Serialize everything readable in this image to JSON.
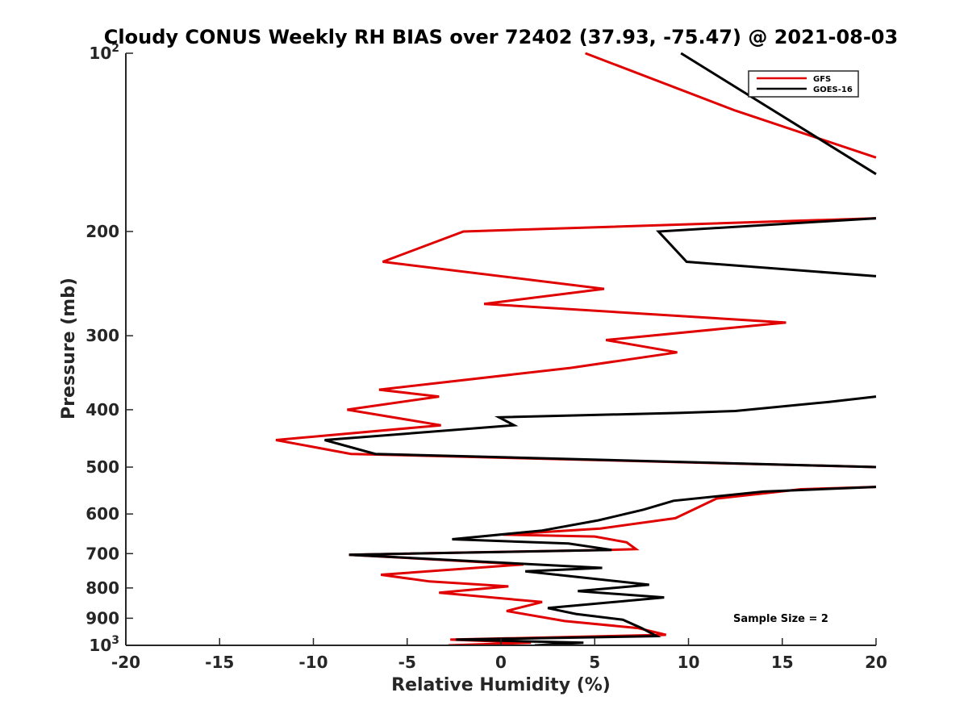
{
  "chart_data": {
    "type": "line",
    "title": "Cloudy CONUS Weekly RH BIAS over 72402 (37.93, -75.47) @ 2021-08-03",
    "xlabel": "Relative Humidity (%)",
    "ylabel": "Pressure (mb)",
    "xlim": [
      -20,
      20
    ],
    "ylim": [
      1000,
      100
    ],
    "yscale": "log",
    "grid": false,
    "legend_position": "top-right",
    "x_ticks": [
      "-20",
      "-15",
      "-10",
      "-5",
      "0",
      "5",
      "10",
      "15",
      "20"
    ],
    "y_ticks": [
      {
        "value": 100,
        "base": "10",
        "exp": "2"
      },
      {
        "value": 200,
        "label": "200"
      },
      {
        "value": 300,
        "label": "300"
      },
      {
        "value": 400,
        "label": "400"
      },
      {
        "value": 500,
        "label": "500"
      },
      {
        "value": 600,
        "label": "600"
      },
      {
        "value": 700,
        "label": "700"
      },
      {
        "value": 800,
        "label": "800"
      },
      {
        "value": 900,
        "label": "900"
      },
      {
        "value": 1000,
        "base": "10",
        "exp": "3"
      }
    ],
    "annotation": "Sample Size = 2",
    "series": [
      {
        "name": "GFS",
        "color": "#e00000",
        "segments": [
          [
            [
              4.5,
              100
            ],
            [
              12.5,
              125
            ],
            [
              20,
              150
            ]
          ],
          [
            [
              20,
              190
            ],
            [
              -2,
              200
            ],
            [
              -6.3,
              225
            ],
            [
              5.5,
              250
            ],
            [
              -0.9,
              265
            ],
            [
              15.2,
              285
            ],
            [
              5.6,
              305
            ],
            [
              9.4,
              320
            ],
            [
              3.7,
              340
            ],
            [
              -6.5,
              370
            ],
            [
              -3.3,
              380
            ],
            [
              -8.2,
              400
            ],
            [
              -3.2,
              425
            ],
            [
              -12,
              450
            ],
            [
              -8,
              475
            ],
            [
              20,
              500
            ]
          ],
          [
            [
              20,
              540
            ],
            [
              16,
              545
            ],
            [
              11.5,
              565
            ],
            [
              10.5,
              585
            ],
            [
              9.3,
              610
            ],
            [
              5.3,
              635
            ],
            [
              0.1,
              650
            ],
            [
              5,
              655
            ],
            [
              6.7,
              670
            ],
            [
              7.2,
              688
            ],
            [
              5.7,
              690
            ],
            [
              -8.1,
              703
            ],
            [
              1.2,
              730
            ],
            [
              -6.4,
              760
            ],
            [
              -3.8,
              780
            ],
            [
              0.4,
              795
            ],
            [
              -3.3,
              815
            ],
            [
              2.2,
              845
            ],
            [
              0.3,
              875
            ],
            [
              3.4,
              910
            ],
            [
              7.3,
              935
            ],
            [
              8.8,
              960
            ],
            [
              -2.7,
              978
            ],
            [
              1.6,
              990
            ],
            [
              -2.8,
              1000
            ]
          ]
        ]
      },
      {
        "name": "GOES-16",
        "color": "#000000",
        "segments": [
          [
            [
              9.6,
              100
            ],
            [
              20,
              160
            ]
          ],
          [
            [
              20,
              190
            ],
            [
              8.4,
              200
            ],
            [
              9.9,
              225
            ],
            [
              20,
              238
            ]
          ],
          [
            [
              20,
              380
            ],
            [
              17.5,
              388
            ],
            [
              12.5,
              402
            ],
            [
              9.5,
              405
            ],
            [
              -0.1,
              412
            ],
            [
              0.7,
              425
            ],
            [
              -9.4,
              450
            ],
            [
              -6.7,
              475
            ],
            [
              20,
              500
            ]
          ],
          [
            [
              20,
              540
            ],
            [
              14,
              550
            ],
            [
              9.2,
              570
            ],
            [
              7.6,
              590
            ],
            [
              5.2,
              615
            ],
            [
              2.2,
              640
            ],
            [
              -2.6,
              662
            ],
            [
              3.6,
              673
            ],
            [
              5.9,
              690
            ],
            [
              -8.1,
              703
            ],
            [
              5.4,
              740
            ],
            [
              1.3,
              750
            ],
            [
              7.9,
              790
            ],
            [
              4.1,
              810
            ],
            [
              8.7,
              830
            ],
            [
              2.5,
              865
            ],
            [
              4,
              885
            ],
            [
              6.5,
              905
            ],
            [
              7.5,
              935
            ],
            [
              8.3,
              965
            ],
            [
              -2.4,
              978
            ],
            [
              4.4,
              990
            ],
            [
              1.8,
              1000
            ]
          ]
        ]
      }
    ]
  }
}
